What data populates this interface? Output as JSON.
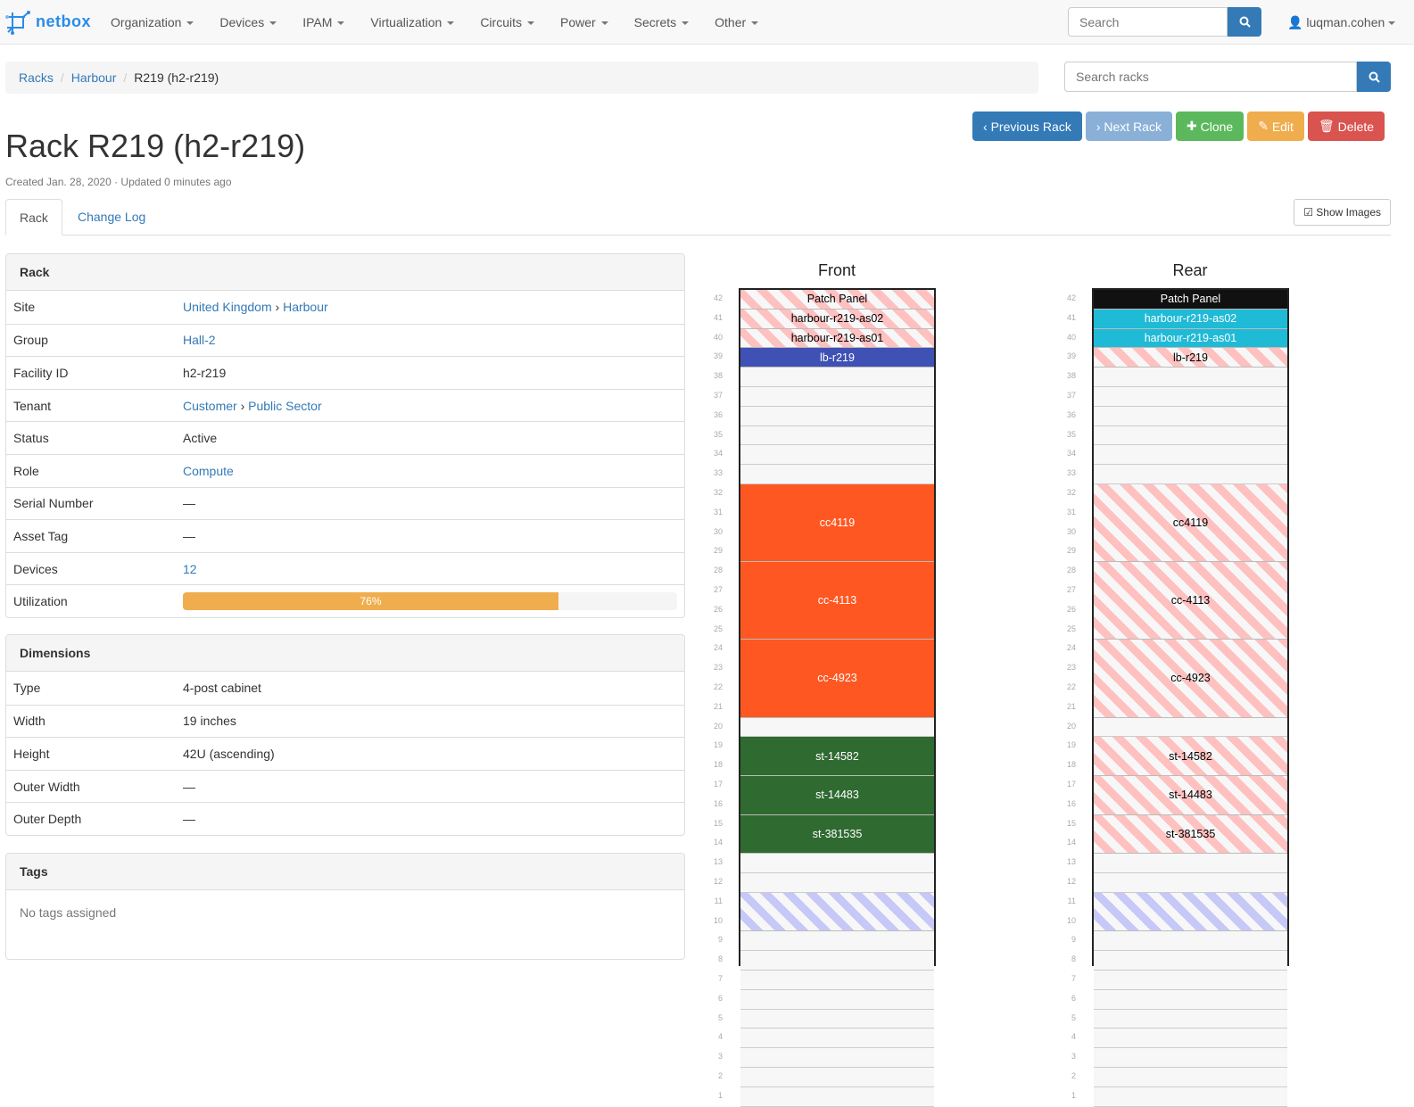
{
  "navbar": {
    "brand": "netbox",
    "menu": [
      "Organization",
      "Devices",
      "IPAM",
      "Virtualization",
      "Circuits",
      "Power",
      "Secrets",
      "Other"
    ],
    "search_placeholder": "Search",
    "user": "luqman.cohen"
  },
  "breadcrumb": [
    "Racks",
    "Harbour",
    "R219 (h2-r219)"
  ],
  "rack_search_placeholder": "Search racks",
  "title": "Rack R219 (h2-r219)",
  "meta": "Created Jan. 28, 2020 · Updated 0 minutes ago",
  "buttons": {
    "previous": "Previous Rack",
    "next": "Next Rack",
    "clone": "Clone",
    "edit": "Edit",
    "delete": "Delete"
  },
  "colors": {
    "primary": "#337ab7",
    "info": "#8ab0d8",
    "success": "#5cb85c",
    "warning": "#f0ad4e",
    "danger": "#d9534f"
  },
  "tabs": [
    "Rack",
    "Change Log"
  ],
  "show_images": "Show Images",
  "rack_panel": {
    "title": "Rack",
    "rows": [
      {
        "label": "Site",
        "value": "United Kingdom",
        "value2": "Harbour",
        "link": true
      },
      {
        "label": "Group",
        "value": "Hall-2",
        "link": true
      },
      {
        "label": "Facility ID",
        "value": "h2-r219"
      },
      {
        "label": "Tenant",
        "value": "Customer",
        "value2": "Public Sector",
        "link": true
      },
      {
        "label": "Status",
        "value": "Active"
      },
      {
        "label": "Role",
        "value": "Compute",
        "link": true
      },
      {
        "label": "Serial Number",
        "value": "—"
      },
      {
        "label": "Asset Tag",
        "value": "—"
      },
      {
        "label": "Devices",
        "value": "12",
        "link": true
      }
    ],
    "utilization_label": "Utilization",
    "utilization": "76%",
    "utilization_pct": 76
  },
  "dimensions_panel": {
    "title": "Dimensions",
    "rows": [
      {
        "label": "Type",
        "value": "4-post cabinet"
      },
      {
        "label": "Width",
        "value": "19 inches"
      },
      {
        "label": "Height",
        "value": "42U (ascending)"
      },
      {
        "label": "Outer Width",
        "value": "—"
      },
      {
        "label": "Outer Depth",
        "value": "—"
      }
    ]
  },
  "tags_panel": {
    "title": "Tags",
    "empty": "No tags assigned"
  },
  "front": {
    "title": "Front",
    "devices": [
      {
        "name": "Patch Panel",
        "top": 42,
        "height": 1,
        "style": "pink"
      },
      {
        "name": "harbour-r219-as02",
        "top": 41,
        "height": 1,
        "style": "pink"
      },
      {
        "name": "harbour-r219-as01",
        "top": 40,
        "height": 1,
        "style": "pink"
      },
      {
        "name": "lb-r219",
        "top": 39,
        "height": 1,
        "color": "#3f51b5"
      },
      {
        "name": "cc4119",
        "top": 32,
        "height": 4,
        "color": "#ff5722"
      },
      {
        "name": "cc-4113",
        "top": 28,
        "height": 4,
        "color": "#ff5722"
      },
      {
        "name": "cc-4923",
        "top": 24,
        "height": 4,
        "color": "#ff5722"
      },
      {
        "name": "st-14582",
        "top": 19,
        "height": 2,
        "color": "#2f6a31"
      },
      {
        "name": "st-14483",
        "top": 17,
        "height": 2,
        "color": "#2f6a31"
      },
      {
        "name": "st-381535",
        "top": 15,
        "height": 2,
        "color": "#2f6a31"
      },
      {
        "name": "",
        "top": 11,
        "height": 2,
        "style": "blue"
      }
    ]
  },
  "rear": {
    "title": "Rear",
    "devices": [
      {
        "name": "Patch Panel",
        "top": 42,
        "height": 1,
        "color": "#111111"
      },
      {
        "name": "harbour-r219-as02",
        "top": 41,
        "height": 1,
        "color": "#1fbad6"
      },
      {
        "name": "harbour-r219-as01",
        "top": 40,
        "height": 1,
        "color": "#1fbad6"
      },
      {
        "name": "lb-r219",
        "top": 39,
        "height": 1,
        "style": "pink"
      },
      {
        "name": "cc4119",
        "top": 32,
        "height": 4,
        "style": "pink"
      },
      {
        "name": "cc-4113",
        "top": 28,
        "height": 4,
        "style": "pink"
      },
      {
        "name": "cc-4923",
        "top": 24,
        "height": 4,
        "style": "pink"
      },
      {
        "name": "st-14582",
        "top": 19,
        "height": 2,
        "style": "pink"
      },
      {
        "name": "st-14483",
        "top": 17,
        "height": 2,
        "style": "pink"
      },
      {
        "name": "st-381535",
        "top": 15,
        "height": 2,
        "style": "pink"
      },
      {
        "name": "",
        "top": 11,
        "height": 2,
        "style": "blue"
      }
    ]
  }
}
